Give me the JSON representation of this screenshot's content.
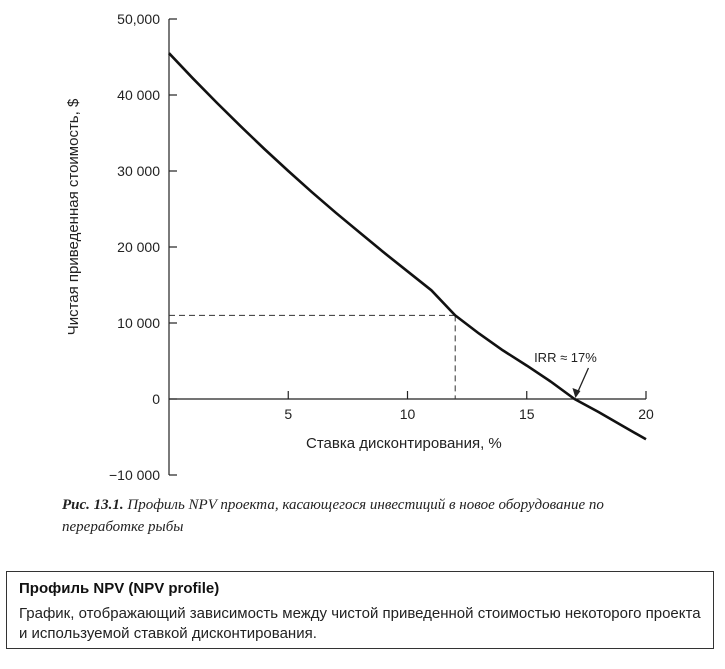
{
  "chart_data": {
    "type": "line",
    "ylabel": "Чистая приведенная стоимость, $",
    "xlabel": "Ставка дисконтирования, %",
    "xlim": [
      0,
      20
    ],
    "ylim": [
      -10000,
      50000
    ],
    "x_ticks": [
      5,
      10,
      15,
      20
    ],
    "x_tick_labels": [
      "5",
      "10",
      "15",
      "20"
    ],
    "y_ticks": [
      50000,
      40000,
      30000,
      20000,
      10000,
      0,
      -10000
    ],
    "y_tick_labels": [
      "50,000",
      "40 000",
      "30 000",
      "20 000",
      "10 000",
      "0",
      "−10 000"
    ],
    "grid": false,
    "series": [
      {
        "x": [
          0,
          1,
          2,
          3,
          4,
          5,
          6,
          7,
          8,
          9,
          10,
          11,
          12,
          13,
          14,
          15,
          16,
          17,
          18,
          19,
          20
        ],
        "y": [
          45500,
          42200,
          39000,
          35900,
          32900,
          30000,
          27200,
          24500,
          21900,
          19300,
          16800,
          14300,
          11000,
          8600,
          6400,
          4400,
          2300,
          0,
          -1700,
          -3500,
          -5300
        ]
      }
    ],
    "reference_point": {
      "x": 12,
      "y": 11000
    },
    "annotations": [
      {
        "text": "IRR ≈ 17%",
        "x": 17,
        "y": 0
      }
    ]
  },
  "caption": {
    "label": "Рис. 13.1.",
    "text": "Профиль NPV проекта, касающегося инвестиций в новое оборудование по переработке рыбы"
  },
  "definition": {
    "title": "Профиль NPV (NPV profile)",
    "body": "График, отображающий зависимость между чистой приведенной стоимостью некоторого проекта и используемой ставкой дисконтирования."
  }
}
